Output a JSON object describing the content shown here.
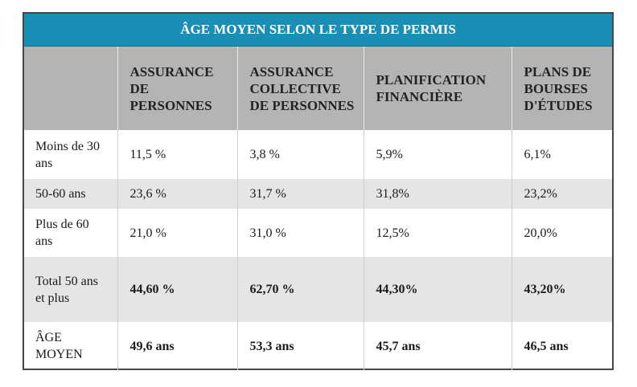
{
  "table": {
    "title": "ÂGE MOYEN SELON LE TYPE DE PERMIS",
    "columns": [
      "",
      "ASSURANCE DE PERSONNES",
      "ASSURANCE COLLECTIVE DE PERSONNES",
      "PLANIFICATION FINANCIÈRE",
      "PLANS DE BOURSES D'ÉTUDES"
    ],
    "rows": [
      {
        "label": "Moins de 30 ans",
        "values": [
          "11,5 %",
          "3,8 %",
          "5,9%",
          "6,1%"
        ]
      },
      {
        "label": "50-60 ans",
        "values": [
          "23,6 %",
          "31,7 %",
          "31,8%",
          "23,2%"
        ]
      },
      {
        "label": "Plus de 60 ans",
        "values": [
          "21,0 %",
          "31,0 %",
          "12,5%",
          "20,0%"
        ]
      },
      {
        "label": "Total 50 ans et plus",
        "values": [
          "44,60 %",
          "62,70 %",
          "44,30%",
          "43,20%"
        ]
      },
      {
        "label": "ÂGE MOYEN",
        "values": [
          "49,6 ans",
          "53,3 ans",
          "45,7 ans",
          "46,5 ans"
        ]
      }
    ]
  },
  "colors": {
    "title_bar": "#1a8fb5",
    "header_bg": "#b4b4b4",
    "row_shade": "#e5e5e5",
    "border": "#474747"
  }
}
